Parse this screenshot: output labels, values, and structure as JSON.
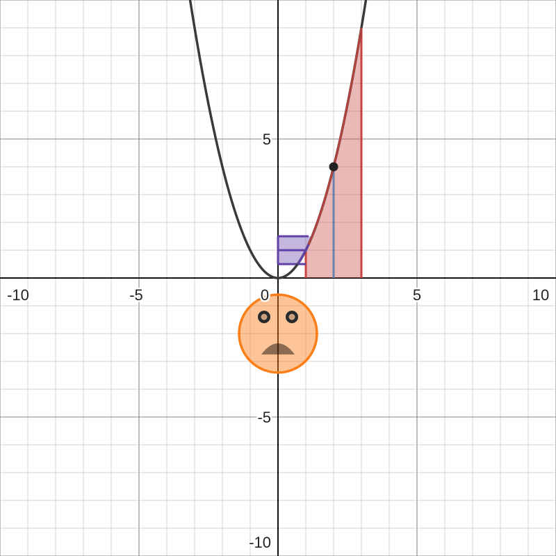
{
  "chart_data": {
    "type": "line",
    "title": "",
    "xlabel": "",
    "ylabel": "",
    "xlim": [
      -10,
      10
    ],
    "ylim": [
      -10,
      10
    ],
    "grid": true,
    "minor_grid_step": 1,
    "major_grid_step": 5,
    "x_ticks": [
      {
        "value": -10,
        "label": "-10"
      },
      {
        "value": -5,
        "label": "-5"
      },
      {
        "value": 5,
        "label": "5"
      },
      {
        "value": 10,
        "label": "10"
      }
    ],
    "y_ticks": [
      {
        "value": 5,
        "label": "5"
      },
      {
        "value": -5,
        "label": "-5"
      },
      {
        "value": -10,
        "label": "-10"
      }
    ],
    "origin_label": "0",
    "curve": {
      "expression": "y = x^2",
      "color": "#3a3a3a"
    },
    "area_under_curve": {
      "from": 1,
      "to": 3,
      "color": "#c74440"
    },
    "marked_point": {
      "x": 2,
      "y": 4,
      "color": "#222222"
    },
    "vertical_segment": {
      "x": 2,
      "y_from": 0,
      "y_to": 4,
      "color": "#6b7fb0"
    },
    "horizontal_segments": [
      {
        "y": 0.5,
        "x_from": 0,
        "x_to": 1,
        "color": "#6042a6"
      },
      {
        "y": 1,
        "x_from": 0,
        "x_to": 1,
        "color": "#6042a6"
      },
      {
        "y": 1.5,
        "x_from": 0,
        "x_to": 1.1,
        "color": "#6042a6"
      }
    ],
    "face": {
      "center": [
        0,
        -2
      ],
      "radius": 1.4,
      "fill_color": "#fa7e19",
      "eyes": [
        [
          -0.5,
          -1.4
        ],
        [
          0.5,
          -1.4
        ]
      ],
      "mouth": {
        "x_from": -0.6,
        "x_to": 0.6,
        "y_base": -2.75,
        "height": 0.4
      },
      "mouth_color": "#c74440"
    }
  }
}
